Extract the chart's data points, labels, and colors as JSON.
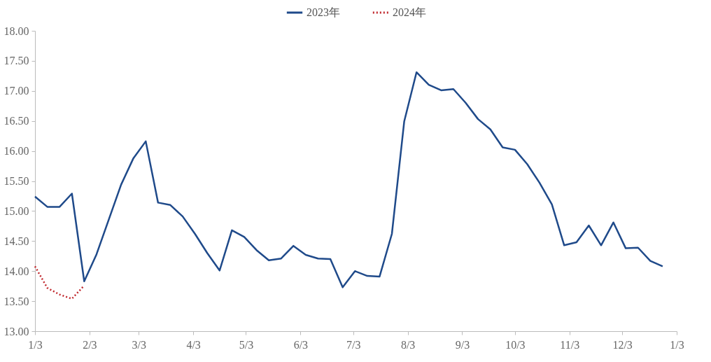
{
  "chart_data": {
    "type": "line",
    "legend": "top",
    "xlim": [
      "2023-01-03",
      "2024-01-03"
    ],
    "xticks": [
      {
        "value": "2023-01-03",
        "label": "1/3"
      },
      {
        "value": "2023-02-03",
        "label": "2/3"
      },
      {
        "value": "2023-03-03",
        "label": "3/3"
      },
      {
        "value": "2023-04-03",
        "label": "4/3"
      },
      {
        "value": "2023-05-03",
        "label": "5/3"
      },
      {
        "value": "2023-06-03",
        "label": "6/3"
      },
      {
        "value": "2023-07-03",
        "label": "7/3"
      },
      {
        "value": "2023-08-03",
        "label": "8/3"
      },
      {
        "value": "2023-09-03",
        "label": "9/3"
      },
      {
        "value": "2023-10-03",
        "label": "10/3"
      },
      {
        "value": "2023-11-03",
        "label": "11/3"
      },
      {
        "value": "2023-12-03",
        "label": "12/3"
      },
      {
        "value": "2024-01-03",
        "label": "1/3"
      }
    ],
    "ylim": [
      13,
      18
    ],
    "yticks": [
      {
        "value": 13,
        "label": "13.00"
      },
      {
        "value": 13.5,
        "label": "13.50"
      },
      {
        "value": 14,
        "label": "14.00"
      },
      {
        "value": 14.5,
        "label": "14.50"
      },
      {
        "value": 15,
        "label": "15.00"
      },
      {
        "value": 15.5,
        "label": "15.50"
      },
      {
        "value": 16,
        "label": "16.00"
      },
      {
        "value": 16.5,
        "label": "16.50"
      },
      {
        "value": 17,
        "label": "17.00"
      },
      {
        "value": 17.5,
        "label": "17.50"
      },
      {
        "value": 18,
        "label": "18.00"
      }
    ],
    "series": [
      {
        "name": "2023年",
        "color": "#1f4a8a",
        "line_style": "solid",
        "x": [
          "2023-01-03",
          "2023-01-10",
          "2023-01-17",
          "2023-01-24",
          "2023-01-31",
          "2023-02-07",
          "2023-02-14",
          "2023-02-21",
          "2023-02-28",
          "2023-03-07",
          "2023-03-14",
          "2023-03-21",
          "2023-03-28",
          "2023-04-04",
          "2023-04-11",
          "2023-04-18",
          "2023-04-25",
          "2023-05-02",
          "2023-05-09",
          "2023-05-16",
          "2023-05-23",
          "2023-05-30",
          "2023-06-06",
          "2023-06-13",
          "2023-06-20",
          "2023-06-27",
          "2023-07-04",
          "2023-07-11",
          "2023-07-18",
          "2023-07-25",
          "2023-08-01",
          "2023-08-08",
          "2023-08-15",
          "2023-08-22",
          "2023-08-29",
          "2023-09-05",
          "2023-09-12",
          "2023-09-19",
          "2023-09-26",
          "2023-10-03",
          "2023-10-10",
          "2023-10-17",
          "2023-10-24",
          "2023-10-31",
          "2023-11-07",
          "2023-11-14",
          "2023-11-21",
          "2023-11-28",
          "2023-12-05",
          "2023-12-12",
          "2023-12-19",
          "2023-12-26"
        ],
        "values": [
          15.24,
          15.07,
          15.07,
          15.29,
          13.83,
          14.28,
          14.86,
          15.44,
          15.88,
          16.16,
          15.14,
          15.1,
          14.91,
          14.62,
          14.3,
          14.01,
          14.68,
          14.57,
          14.35,
          14.18,
          14.21,
          14.42,
          14.27,
          14.21,
          14.2,
          13.73,
          14.0,
          13.92,
          13.91,
          14.62,
          16.49,
          17.31,
          17.1,
          17.01,
          17.03,
          16.8,
          16.53,
          16.36,
          16.06,
          16.02,
          15.78,
          15.47,
          15.11,
          14.43,
          14.48,
          14.76,
          14.43,
          14.81,
          14.38,
          14.39,
          14.17,
          14.08
        ]
      },
      {
        "name": "2024年",
        "color": "#c0282d",
        "line_style": "dotted",
        "x": [
          "2023-01-03",
          "2023-01-10",
          "2023-01-17",
          "2023-01-24",
          "2023-01-31"
        ],
        "values": [
          14.08,
          13.72,
          13.61,
          13.54,
          13.76
        ]
      }
    ]
  }
}
